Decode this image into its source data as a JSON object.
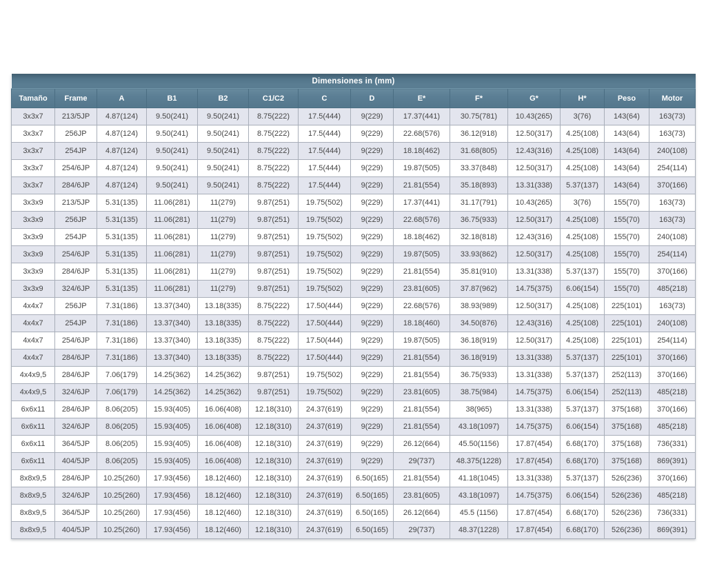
{
  "table": {
    "title": "Dimensiones in (mm)",
    "columns": [
      "Tamaño",
      "Frame",
      "A",
      "B1",
      "B2",
      "C1/C2",
      "C",
      "D",
      "E*",
      "F*",
      "G*",
      "H*",
      "Peso",
      "Motor"
    ],
    "colors": {
      "header_bg": "#5b7e94",
      "header_text": "#ffffff",
      "row_shaded_bg": "#e3e5ee",
      "row_plain_bg": "#ffffff",
      "cell_border": "#a8aeb9",
      "body_text": "#454545"
    },
    "rows": [
      [
        "3x3x7",
        "213/5JP",
        "4.87(124)",
        "9.50(241)",
        "9.50(241)",
        "8.75(222)",
        "17.5(444)",
        "9(229)",
        "17.37(441)",
        "30.75(781)",
        "10.43(265)",
        "3(76)",
        "143(64)",
        "163(73)"
      ],
      [
        "3x3x7",
        "256JP",
        "4.87(124)",
        "9.50(241)",
        "9.50(241)",
        "8.75(222)",
        "17.5(444)",
        "9(229)",
        "22.68(576)",
        "36.12(918)",
        "12.50(317)",
        "4.25(108)",
        "143(64)",
        "163(73)"
      ],
      [
        "3x3x7",
        "254JP",
        "4.87(124)",
        "9.50(241)",
        "9.50(241)",
        "8.75(222)",
        "17.5(444)",
        "9(229)",
        "18.18(462)",
        "31.68(805)",
        "12.43(316)",
        "4.25(108)",
        "143(64)",
        "240(108)"
      ],
      [
        "3x3x7",
        "254/6JP",
        "4.87(124)",
        "9.50(241)",
        "9.50(241)",
        "8.75(222)",
        "17.5(444)",
        "9(229)",
        "19.87(505)",
        "33.37(848)",
        "12.50(317)",
        "4.25(108)",
        "143(64)",
        "254(114)"
      ],
      [
        "3x3x7",
        "284/6JP",
        "4.87(124)",
        "9.50(241)",
        "9.50(241)",
        "8.75(222)",
        "17.5(444)",
        "9(229)",
        "21.81(554)",
        "35.18(893)",
        "13.31(338)",
        "5.37(137)",
        "143(64)",
        "370(166)"
      ],
      [
        "3x3x9",
        "213/5JP",
        "5.31(135)",
        "11.06(281)",
        "11(279)",
        "9.87(251)",
        "19.75(502)",
        "9(229)",
        "17.37(441)",
        "31.17(791)",
        "10.43(265)",
        "3(76)",
        "155(70)",
        "163(73)"
      ],
      [
        "3x3x9",
        "256JP",
        "5.31(135)",
        "11.06(281)",
        "11(279)",
        "9.87(251)",
        "19.75(502)",
        "9(229)",
        "22.68(576)",
        "36.75(933)",
        "12.50(317)",
        "4.25(108)",
        "155(70)",
        "163(73)"
      ],
      [
        "3x3x9",
        "254JP",
        "5.31(135)",
        "11.06(281)",
        "11(279)",
        "9.87(251)",
        "19.75(502)",
        "9(229)",
        "18.18(462)",
        "32.18(818)",
        "12.43(316)",
        "4.25(108)",
        "155(70)",
        "240(108)"
      ],
      [
        "3x3x9",
        "254/6JP",
        "5.31(135)",
        "11.06(281)",
        "11(279)",
        "9.87(251)",
        "19.75(502)",
        "9(229)",
        "19.87(505)",
        "33.93(862)",
        "12.50(317)",
        "4.25(108)",
        "155(70)",
        "254(114)"
      ],
      [
        "3x3x9",
        "284/6JP",
        "5.31(135)",
        "11.06(281)",
        "11(279)",
        "9.87(251)",
        "19.75(502)",
        "9(229)",
        "21.81(554)",
        "35.81(910)",
        "13.31(338)",
        "5.37(137)",
        "155(70)",
        "370(166)"
      ],
      [
        "3x3x9",
        "324/6JP",
        "5.31(135)",
        "11.06(281)",
        "11(279)",
        "9.87(251)",
        "19.75(502)",
        "9(229)",
        "23.81(605)",
        "37.87(962)",
        "14.75(375)",
        "6.06(154)",
        "155(70)",
        "485(218)"
      ],
      [
        "4x4x7",
        "256JP",
        "7.31(186)",
        "13.37(340)",
        "13.18(335)",
        "8.75(222)",
        "17.50(444)",
        "9(229)",
        "22.68(576)",
        "38.93(989)",
        "12.50(317)",
        "4.25(108)",
        "225(101)",
        "163(73)"
      ],
      [
        "4x4x7",
        "254JP",
        "7.31(186)",
        "13.37(340)",
        "13.18(335)",
        "8.75(222)",
        "17.50(444)",
        "9(229)",
        "18.18(460)",
        "34.50(876)",
        "12.43(316)",
        "4.25(108)",
        "225(101)",
        "240(108)"
      ],
      [
        "4x4x7",
        "254/6JP",
        "7.31(186)",
        "13.37(340)",
        "13.18(335)",
        "8.75(222)",
        "17.50(444)",
        "9(229)",
        "19.87(505)",
        "36.18(919)",
        "12.50(317)",
        "4.25(108)",
        "225(101)",
        "254(114)"
      ],
      [
        "4x4x7",
        "284/6JP",
        "7.31(186)",
        "13.37(340)",
        "13.18(335)",
        "8.75(222)",
        "17.50(444)",
        "9(229)",
        "21.81(554)",
        "36.18(919)",
        "13.31(338)",
        "5.37(137)",
        "225(101)",
        "370(166)"
      ],
      [
        "4x4x9,5",
        "284/6JP",
        "7.06(179)",
        "14.25(362)",
        "14.25(362)",
        "9.87(251)",
        "19.75(502)",
        "9(229)",
        "21.81(554)",
        "36.75(933)",
        "13.31(338)",
        "5.37(137)",
        "252(113)",
        "370(166)"
      ],
      [
        "4x4x9,5",
        "324/6JP",
        "7.06(179)",
        "14.25(362)",
        "14.25(362)",
        "9.87(251)",
        "19.75(502)",
        "9(229)",
        "23.81(605)",
        "38.75(984)",
        "14.75(375)",
        "6.06(154)",
        "252(113)",
        "485(218)"
      ],
      [
        "6x6x11",
        "284/6JP",
        "8.06(205)",
        "15.93(405)",
        "16.06(408)",
        "12.18(310)",
        "24.37(619)",
        "9(229)",
        "21.81(554)",
        "38(965)",
        "13.31(338)",
        "5.37(137)",
        "375(168)",
        "370(166)"
      ],
      [
        "6x6x11",
        "324/6JP",
        "8.06(205)",
        "15.93(405)",
        "16.06(408)",
        "12.18(310)",
        "24.37(619)",
        "9(229)",
        "21.81(554)",
        "43.18(1097)",
        "14.75(375)",
        "6.06(154)",
        "375(168)",
        "485(218)"
      ],
      [
        "6x6x11",
        "364/5JP",
        "8.06(205)",
        "15.93(405)",
        "16.06(408)",
        "12.18(310)",
        "24.37(619)",
        "9(229)",
        "26.12(664)",
        "45.50(1156)",
        "17.87(454)",
        "6.68(170)",
        "375(168)",
        "736(331)"
      ],
      [
        "6x6x11",
        "404/5JP",
        "8.06(205)",
        "15.93(405)",
        "16.06(408)",
        "12.18(310)",
        "24.37(619)",
        "9(229)",
        "29(737)",
        "48.375(1228)",
        "17.87(454)",
        "6.68(170)",
        "375(168)",
        "869(391)"
      ],
      [
        "8x8x9,5",
        "284/6JP",
        "10.25(260)",
        "17.93(456)",
        "18.12(460)",
        "12.18(310)",
        "24.37(619)",
        "6.50(165)",
        "21.81(554)",
        "41.18(1045)",
        "13.31(338)",
        "5.37(137)",
        "526(236)",
        "370(166)"
      ],
      [
        "8x8x9,5",
        "324/6JP",
        "10.25(260)",
        "17.93(456)",
        "18.12(460)",
        "12.18(310)",
        "24.37(619)",
        "6.50(165)",
        "23.81(605)",
        "43.18(1097)",
        "14.75(375)",
        "6.06(154)",
        "526(236)",
        "485(218)"
      ],
      [
        "8x8x9,5",
        "364/5JP",
        "10.25(260)",
        "17.93(456)",
        "18.12(460)",
        "12.18(310)",
        "24.37(619)",
        "6.50(165)",
        "26.12(664)",
        "45.5 (1156)",
        "17.87(454)",
        "6.68(170)",
        "526(236)",
        "736(331)"
      ],
      [
        "8x8x9,5",
        "404/5JP",
        "10.25(260)",
        "17.93(456)",
        "18.12(460)",
        "12.18(310)",
        "24.37(619)",
        "6.50(165)",
        "29(737)",
        "48.37(1228)",
        "17.87(454)",
        "6.68(170)",
        "526(236)",
        "869(391)"
      ]
    ]
  }
}
